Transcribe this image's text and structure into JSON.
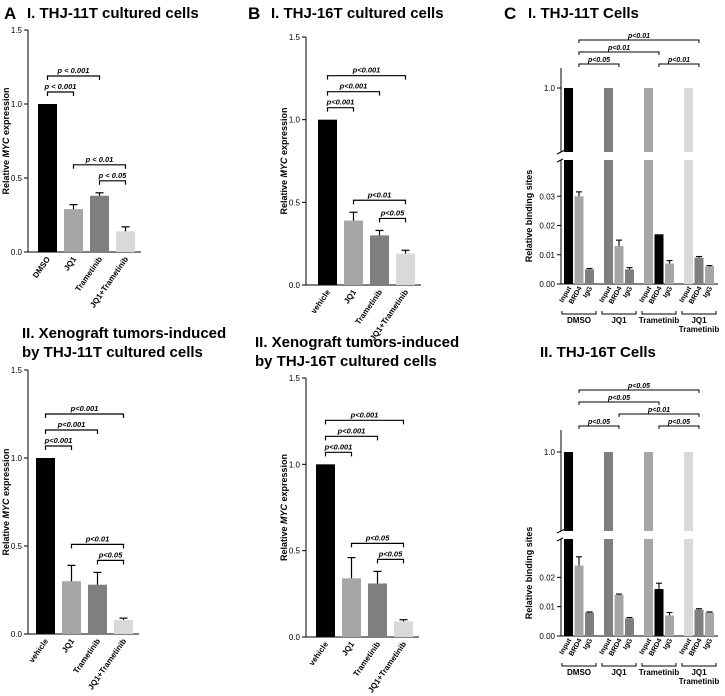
{
  "panels": [
    {
      "id": "A1",
      "letter": "A",
      "title_lines": [
        "I. THJ-11T cultured cells"
      ]
    },
    {
      "id": "B1",
      "letter": "B",
      "title_lines": [
        "I. THJ-16T cultured cells"
      ]
    },
    {
      "id": "C1",
      "letter": "C",
      "title_lines": [
        "I. THJ-11T Cells"
      ]
    },
    {
      "id": "A2",
      "letter": "",
      "title_lines": [
        "II. Xenograft tumors-induced",
        "by THJ-11T cultured cells"
      ]
    },
    {
      "id": "B2",
      "letter": "",
      "title_lines": [
        "II. Xenograft tumors-induced",
        "by THJ-16T cultured cells"
      ]
    },
    {
      "id": "C2",
      "letter": "",
      "title_lines": [
        "II. THJ-16T Cells"
      ]
    }
  ],
  "chart_data": [
    {
      "id": "A1",
      "type": "bar",
      "ylabel_pre": "Relative ",
      "ylabel_it": "MYC",
      "ylabel_post": " expression",
      "ylim": [
        0,
        1.5
      ],
      "yticks": [
        "0.0",
        "0.5",
        "1.0",
        "1.5"
      ],
      "categories": [
        "DMSO",
        "JQ1",
        "Trametinib",
        "JQ1+Trametinib"
      ],
      "values": [
        1.0,
        0.29,
        0.38,
        0.14
      ],
      "errors": [
        0,
        0.03,
        0.02,
        0.03
      ],
      "colors": [
        "#000000",
        "#a6a6a6",
        "#7f7f7f",
        "#d9d9d9"
      ],
      "comparisons": [
        {
          "a": 0,
          "b": 2,
          "label": "p < 0.001"
        },
        {
          "a": 0,
          "b": 1,
          "label": "p < 0.001"
        },
        {
          "a": 1,
          "b": 3,
          "label": "p < 0.01"
        },
        {
          "a": 2,
          "b": 3,
          "label": "p < 0.05"
        }
      ]
    },
    {
      "id": "B1",
      "type": "bar",
      "ylabel_pre": "Relative ",
      "ylabel_it": "MYC",
      "ylabel_post": " expression",
      "ylim": [
        0,
        1.5
      ],
      "yticks": [
        "0.0",
        "0.5",
        "1.0",
        "1.5"
      ],
      "categories": [
        "vehicle",
        "JQ1",
        "Trametinib",
        "JQ1+Trametinib"
      ],
      "values": [
        1.0,
        0.39,
        0.3,
        0.19
      ],
      "errors": [
        0,
        0.05,
        0.03,
        0.02
      ],
      "colors": [
        "#000000",
        "#a6a6a6",
        "#7f7f7f",
        "#d9d9d9"
      ],
      "comparisons": [
        {
          "a": 0,
          "b": 3,
          "label": "p<0.001"
        },
        {
          "a": 0,
          "b": 2,
          "label": "p<0.001"
        },
        {
          "a": 0,
          "b": 1,
          "label": "p<0.001"
        },
        {
          "a": 1,
          "b": 3,
          "label": "p<0.01"
        },
        {
          "a": 2,
          "b": 3,
          "label": "p<0.05"
        }
      ]
    },
    {
      "id": "A2",
      "type": "bar",
      "ylabel_pre": "Relative ",
      "ylabel_it": "MYC",
      "ylabel_post": " expression",
      "ylim": [
        0,
        1.5
      ],
      "yticks": [
        "0.0",
        "0.5",
        "1.0",
        "1.5"
      ],
      "categories": [
        "vehicle",
        "JQ1",
        "Trametinib",
        "JQ1+Trametinib"
      ],
      "values": [
        1.0,
        0.3,
        0.28,
        0.08
      ],
      "errors": [
        0,
        0.09,
        0.07,
        0.01
      ],
      "colors": [
        "#000000",
        "#a6a6a6",
        "#7f7f7f",
        "#d9d9d9"
      ],
      "comparisons": [
        {
          "a": 0,
          "b": 3,
          "label": "p<0.001"
        },
        {
          "a": 0,
          "b": 2,
          "label": "p<0.001"
        },
        {
          "a": 0,
          "b": 1,
          "label": "p<0.001"
        },
        {
          "a": 1,
          "b": 3,
          "label": "p<0.01"
        },
        {
          "a": 2,
          "b": 3,
          "label": "p<0.05"
        }
      ]
    },
    {
      "id": "B2",
      "type": "bar",
      "ylabel_pre": "Relative ",
      "ylabel_it": "MYC",
      "ylabel_post": " expression",
      "ylim": [
        0,
        1.5
      ],
      "yticks": [
        "0.0",
        "0.5",
        "1.0",
        "1.5"
      ],
      "categories": [
        "vehicle",
        "JQ1",
        "Trametinib",
        "JQ1+Trametinib"
      ],
      "values": [
        1.0,
        0.34,
        0.31,
        0.09
      ],
      "errors": [
        0,
        0.12,
        0.07,
        0.01
      ],
      "colors": [
        "#000000",
        "#a6a6a6",
        "#7f7f7f",
        "#d9d9d9"
      ],
      "comparisons": [
        {
          "a": 0,
          "b": 3,
          "label": "p<0.001"
        },
        {
          "a": 0,
          "b": 2,
          "label": "p<0.001"
        },
        {
          "a": 0,
          "b": 1,
          "label": "p<0.001"
        },
        {
          "a": 1,
          "b": 3,
          "label": "p<0.05"
        },
        {
          "a": 2,
          "b": 3,
          "label": "p<0.05"
        }
      ]
    },
    {
      "id": "C1",
      "type": "bar",
      "ylabel": "Relative binding sites",
      "broken_axis": true,
      "lower_ylim": [
        0,
        0.04
      ],
      "lower_yticks": [
        "0.00",
        "0.01",
        "0.02",
        "0.03"
      ],
      "lower_tick_values": [
        0,
        0.01,
        0.02,
        0.03
      ],
      "upper_ytick": "1.0",
      "categories": [
        "Input",
        "BRD4",
        "IgG",
        "Input",
        "BRD4",
        "IgG",
        "Input",
        "BRD4",
        "IgG",
        "Input",
        "BRD4",
        "IgG"
      ],
      "groups": [
        {
          "lines": [
            "DMSO"
          ]
        },
        {
          "lines": [
            "JQ1"
          ]
        },
        {
          "lines": [
            "Trametinib"
          ]
        },
        {
          "lines": [
            "JQ1",
            "Trametinib"
          ]
        }
      ],
      "values": [
        1.0,
        0.03,
        0.005,
        1.0,
        0.013,
        0.005,
        1.0,
        0.017,
        0.007,
        1.0,
        0.009,
        0.006
      ],
      "errors": [
        0,
        0.0015,
        0.0003,
        0,
        0.002,
        0.0006,
        0,
        0,
        0.001,
        0,
        0.0004,
        0.0003
      ],
      "colors": [
        "#000000",
        "#a6a6a6",
        "#7f7f7f",
        "#7f7f7f",
        "#a6a6a6",
        "#7f7f7f",
        "#a6a6a6",
        "#000000",
        "#a6a6a6",
        "#d9d9d9",
        "#7f7f7f",
        "#a6a6a6"
      ],
      "comparisons": [
        {
          "a": 1,
          "b": 4,
          "label": "p<0.05"
        },
        {
          "a": 1,
          "b": 7,
          "label": "p<0.01"
        },
        {
          "a": 7,
          "b": 10,
          "label": "p<0.01"
        },
        {
          "a": 1,
          "b": 10,
          "label": "p<0.01"
        }
      ]
    },
    {
      "id": "C2",
      "type": "bar",
      "ylabel": "Relative binding sites",
      "broken_axis": true,
      "lower_ylim": [
        0,
        0.03
      ],
      "lower_yticks": [
        "0.00",
        "0.01",
        "0.02"
      ],
      "lower_tick_values": [
        0,
        0.01,
        0.02
      ],
      "upper_ytick": "1.0",
      "categories": [
        "Input",
        "BRD4",
        "IgG",
        "Input",
        "BRD4",
        "IgG",
        "Input",
        "BRD4",
        "IgG",
        "Input",
        "BRD4",
        "IgG"
      ],
      "groups": [
        {
          "lines": [
            "DMSO"
          ]
        },
        {
          "lines": [
            "JQ1"
          ]
        },
        {
          "lines": [
            "Trametinib"
          ]
        },
        {
          "lines": [
            "JQ1",
            "Trametinib"
          ]
        }
      ],
      "values": [
        1.0,
        0.024,
        0.008,
        1.0,
        0.014,
        0.006,
        1.0,
        0.016,
        0.007,
        1.0,
        0.009,
        0.008
      ],
      "errors": [
        0,
        0.003,
        0.0002,
        0,
        0.0003,
        0.0003,
        0,
        0.002,
        0.001,
        0,
        0.0003,
        0.0002
      ],
      "colors": [
        "#000000",
        "#a6a6a6",
        "#7f7f7f",
        "#7f7f7f",
        "#a6a6a6",
        "#7f7f7f",
        "#a6a6a6",
        "#000000",
        "#a6a6a6",
        "#d9d9d9",
        "#7f7f7f",
        "#a6a6a6"
      ],
      "comparisons": [
        {
          "a": 7,
          "b": 10,
          "label": "p<0.05"
        },
        {
          "a": 4,
          "b": 10,
          "label": "p<0.01"
        },
        {
          "a": 1,
          "b": 10,
          "label": "p<0.05"
        },
        {
          "a": 1,
          "b": 7,
          "label": "p<0.05"
        },
        {
          "a": 1,
          "b": 4,
          "label": "p<0.05"
        }
      ]
    }
  ]
}
